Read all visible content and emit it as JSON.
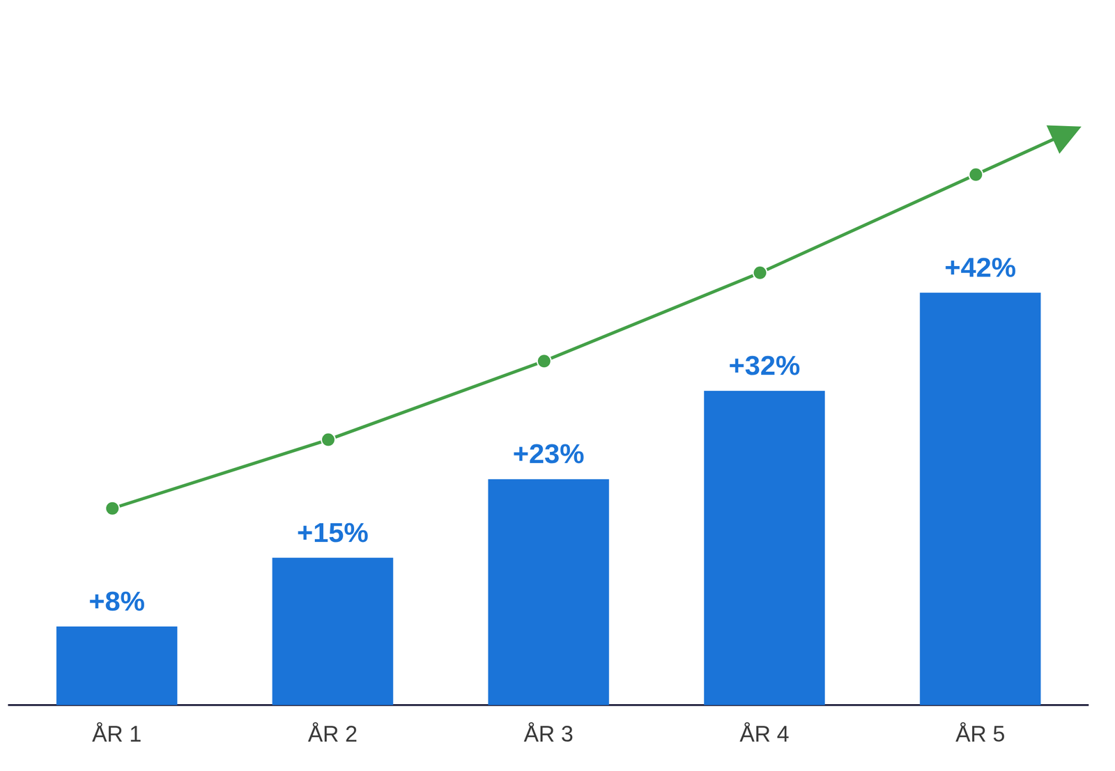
{
  "chart_data": {
    "type": "bar",
    "categories": [
      "ÅR 1",
      "ÅR 2",
      "ÅR 3",
      "ÅR 4",
      "ÅR 5"
    ],
    "values": [
      8,
      15,
      23,
      32,
      42
    ],
    "value_labels": [
      "+8%",
      "+15%",
      "+23%",
      "+32%",
      "+42%"
    ],
    "color": "#1b74d8",
    "ylim": [
      0,
      70
    ],
    "grid": false,
    "data_labels": true,
    "tick_labels": "x"
  }
}
